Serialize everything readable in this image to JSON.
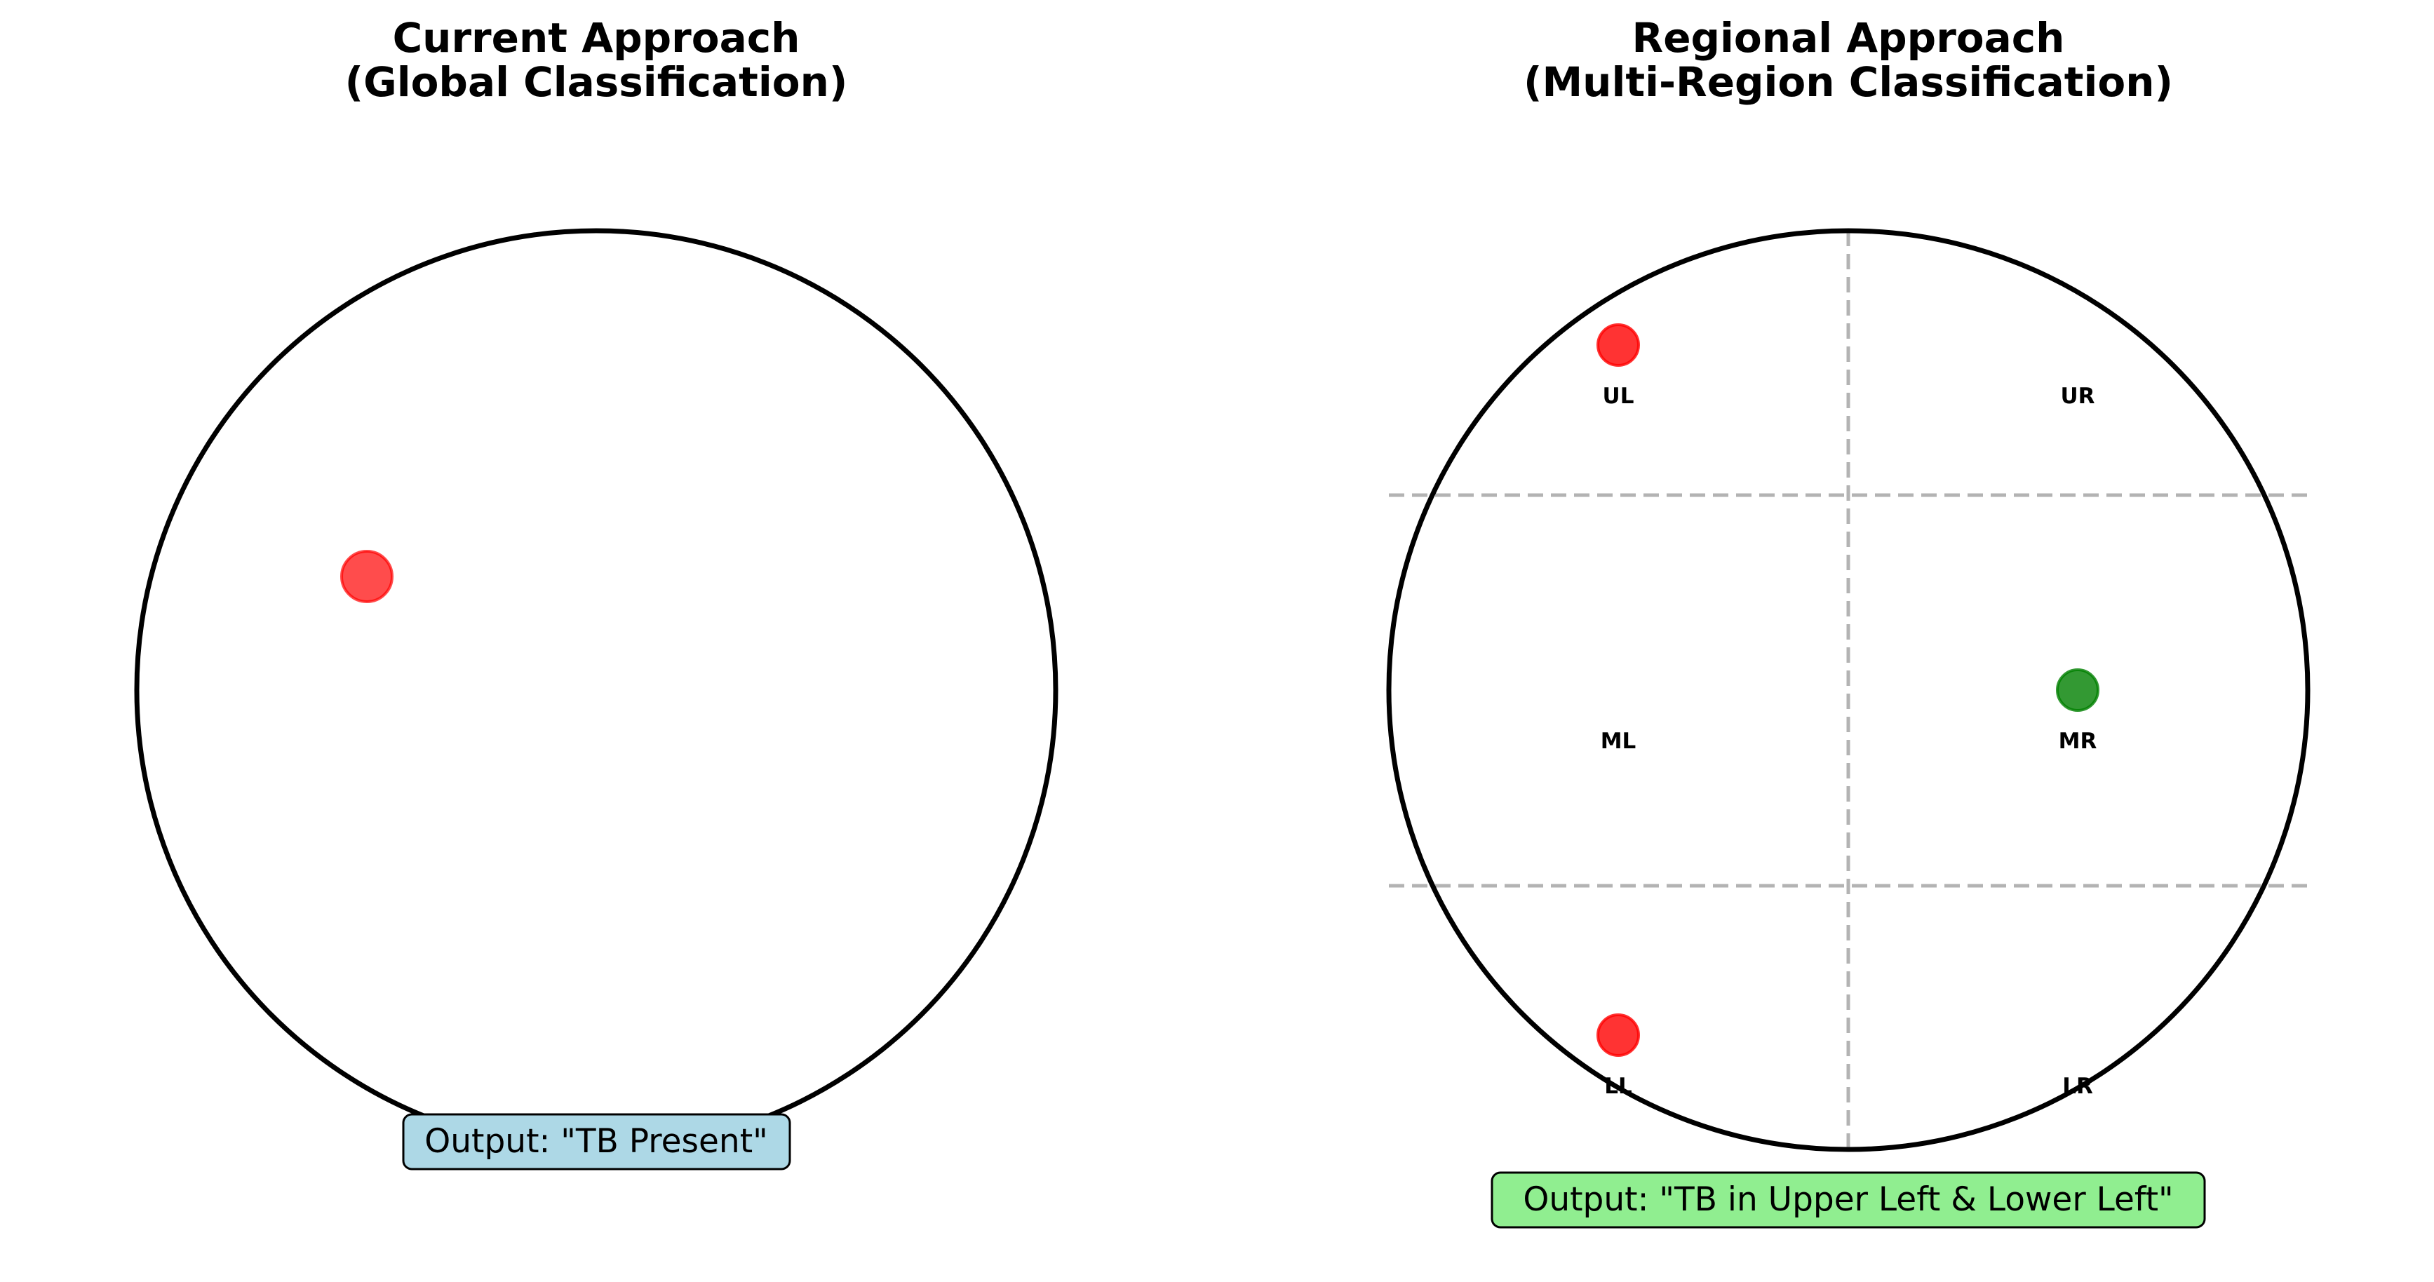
{
  "left_panel": {
    "title_line1": "Current Approach",
    "title_line2": "(Global Classification)",
    "output": "Output: \"TB Present\"",
    "output_bg": "#add8e6",
    "lesion_color": "#ff0000"
  },
  "right_panel": {
    "title_line1": "Regional Approach",
    "title_line2": "(Multi-Region Classification)",
    "output": "Output: \"TB in Upper Left & Lower Left\"",
    "output_bg": "#90ee90",
    "regions": [
      {
        "label": "UL",
        "status": "tb",
        "color": "#ff0000"
      },
      {
        "label": "UR",
        "status": "none"
      },
      {
        "label": "ML",
        "status": "none"
      },
      {
        "label": "MR",
        "status": "normal",
        "color": "#008000"
      },
      {
        "label": "LL",
        "status": "tb",
        "color": "#ff0000"
      },
      {
        "label": "LR",
        "status": "none"
      }
    ]
  }
}
